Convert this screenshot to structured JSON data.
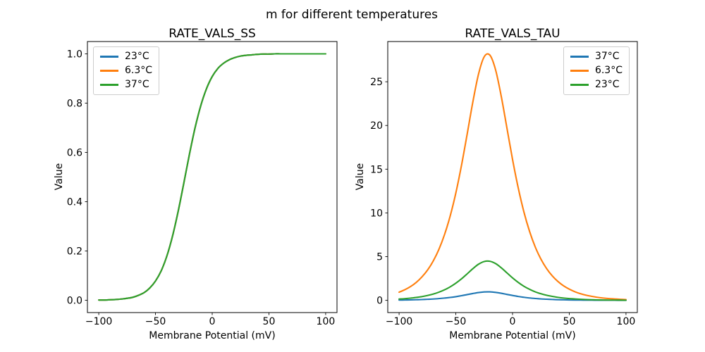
{
  "figure": {
    "suptitle": "m for different temperatures",
    "background_color": "#ffffff",
    "text_color": "#000000"
  },
  "chart_data": [
    {
      "id": "ss",
      "type": "line",
      "title": "RATE_VALS_SS",
      "xlabel": "Membrane Potential (mV)",
      "ylabel": "Value",
      "grid": false,
      "legend_position": "upper-left",
      "xlim": [
        -110,
        110
      ],
      "ylim": [
        -0.05,
        1.05
      ],
      "xticks": [
        -100,
        -50,
        0,
        50,
        100
      ],
      "xtick_labels": [
        "−100",
        "−50",
        "0",
        "50",
        "100"
      ],
      "yticks": [
        0.0,
        0.2,
        0.4,
        0.6,
        0.8,
        1.0
      ],
      "ytick_labels": [
        "0.0",
        "0.2",
        "0.4",
        "0.6",
        "0.8",
        "1.0"
      ],
      "x": [
        -100,
        -95,
        -90,
        -85,
        -80,
        -75,
        -70,
        -65,
        -60,
        -55,
        -50,
        -45,
        -40,
        -35,
        -30,
        -25,
        -20,
        -15,
        -10,
        -5,
        0,
        5,
        10,
        15,
        20,
        25,
        30,
        35,
        40,
        45,
        50,
        55,
        60,
        65,
        70,
        75,
        80,
        85,
        90,
        95,
        100
      ],
      "series": [
        {
          "name": "23°C",
          "color": "#1f77b4",
          "values": [
            0.001,
            0.001,
            0.002,
            0.003,
            0.005,
            0.008,
            0.012,
            0.02,
            0.031,
            0.05,
            0.078,
            0.119,
            0.179,
            0.26,
            0.361,
            0.476,
            0.594,
            0.702,
            0.791,
            0.859,
            0.908,
            0.941,
            0.962,
            0.976,
            0.985,
            0.991,
            0.994,
            0.996,
            0.998,
            0.999,
            0.999,
            1.0,
            1.0,
            1.0,
            1.0,
            1.0,
            1.0,
            1.0,
            1.0,
            1.0,
            1.0
          ]
        },
        {
          "name": "6.3°C",
          "color": "#ff7f0e",
          "values": [
            0.001,
            0.001,
            0.002,
            0.003,
            0.005,
            0.008,
            0.012,
            0.02,
            0.031,
            0.05,
            0.078,
            0.119,
            0.179,
            0.26,
            0.361,
            0.476,
            0.594,
            0.702,
            0.791,
            0.859,
            0.908,
            0.941,
            0.962,
            0.976,
            0.985,
            0.991,
            0.994,
            0.996,
            0.998,
            0.999,
            0.999,
            1.0,
            1.0,
            1.0,
            1.0,
            1.0,
            1.0,
            1.0,
            1.0,
            1.0,
            1.0
          ]
        },
        {
          "name": "37°C",
          "color": "#2ca02c",
          "values": [
            0.001,
            0.001,
            0.002,
            0.003,
            0.005,
            0.008,
            0.012,
            0.02,
            0.031,
            0.05,
            0.078,
            0.119,
            0.179,
            0.26,
            0.361,
            0.476,
            0.594,
            0.702,
            0.791,
            0.859,
            0.908,
            0.941,
            0.962,
            0.976,
            0.985,
            0.991,
            0.994,
            0.996,
            0.998,
            0.999,
            0.999,
            1.0,
            1.0,
            1.0,
            1.0,
            1.0,
            1.0,
            1.0,
            1.0,
            1.0,
            1.0
          ]
        }
      ]
    },
    {
      "id": "tau",
      "type": "line",
      "title": "RATE_VALS_TAU",
      "xlabel": "Membrane Potential (mV)",
      "ylabel": "Value",
      "grid": false,
      "legend_position": "upper-right",
      "xlim": [
        -110,
        110
      ],
      "ylim": [
        -1.4,
        29.6
      ],
      "xticks": [
        -100,
        -50,
        0,
        50,
        100
      ],
      "xtick_labels": [
        "−100",
        "−50",
        "0",
        "50",
        "100"
      ],
      "yticks": [
        0,
        5,
        10,
        15,
        20,
        25
      ],
      "ytick_labels": [
        "0",
        "5",
        "10",
        "15",
        "20",
        "25"
      ],
      "x": [
        -100,
        -95,
        -90,
        -85,
        -80,
        -75,
        -70,
        -65,
        -60,
        -55,
        -50,
        -45,
        -40,
        -35,
        -30,
        -25,
        -20,
        -15,
        -10,
        -5,
        0,
        5,
        10,
        15,
        20,
        25,
        30,
        35,
        40,
        45,
        50,
        55,
        60,
        65,
        70,
        75,
        80,
        85,
        90,
        95,
        100
      ],
      "series": [
        {
          "name": "37°C",
          "color": "#1f77b4",
          "values": [
            0.03,
            0.04,
            0.05,
            0.07,
            0.09,
            0.12,
            0.15,
            0.2,
            0.26,
            0.33,
            0.42,
            0.53,
            0.66,
            0.78,
            0.89,
            0.96,
            0.97,
            0.91,
            0.81,
            0.68,
            0.56,
            0.44,
            0.35,
            0.27,
            0.21,
            0.16,
            0.13,
            0.1,
            0.07,
            0.06,
            0.04,
            0.03,
            0.03,
            0.02,
            0.02,
            0.01,
            0.01,
            0.01,
            0.01,
            0.0,
            0.0
          ]
        },
        {
          "name": "6.3°C",
          "color": "#ff7f0e",
          "values": [
            0.93,
            1.21,
            1.57,
            2.04,
            2.66,
            3.45,
            4.48,
            5.8,
            7.5,
            9.63,
            12.27,
            15.43,
            19.01,
            22.68,
            25.87,
            27.85,
            28.05,
            26.39,
            23.37,
            19.75,
            16.12,
            12.87,
            10.12,
            7.89,
            6.11,
            4.72,
            3.64,
            2.8,
            2.16,
            1.66,
            1.28,
            0.98,
            0.75,
            0.58,
            0.45,
            0.34,
            0.26,
            0.2,
            0.16,
            0.12,
            0.09
          ]
        },
        {
          "name": "23°C",
          "color": "#2ca02c",
          "values": [
            0.15,
            0.19,
            0.25,
            0.33,
            0.42,
            0.55,
            0.71,
            0.93,
            1.2,
            1.54,
            1.96,
            2.46,
            3.03,
            3.62,
            4.13,
            4.44,
            4.47,
            4.21,
            3.73,
            3.15,
            2.57,
            2.05,
            1.61,
            1.26,
            0.97,
            0.75,
            0.58,
            0.45,
            0.34,
            0.26,
            0.2,
            0.16,
            0.12,
            0.09,
            0.07,
            0.05,
            0.04,
            0.03,
            0.03,
            0.02,
            0.01
          ]
        }
      ]
    }
  ]
}
